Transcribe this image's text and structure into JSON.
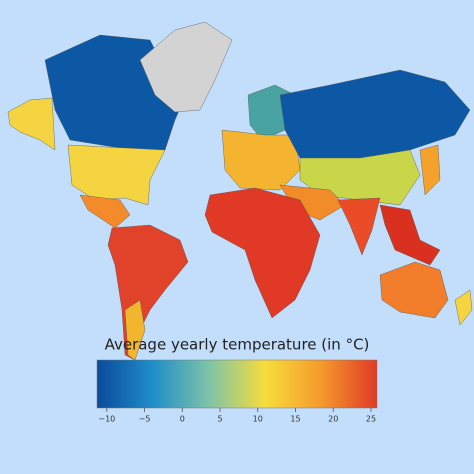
{
  "map": {
    "title": "Average yearly temperature (in °C)",
    "colorbar": {
      "range": [
        -11.3,
        25.8
      ],
      "ticks": [
        {
          "value": -10,
          "label": "−10"
        },
        {
          "value": -5,
          "label": "−5"
        },
        0,
        5,
        10,
        15,
        20,
        25
      ],
      "colors": [
        "#0b4a9a",
        "#1f8ec9",
        "#7ec3a8",
        "#f6dd3c",
        "#f59a2c",
        "#e03a26"
      ]
    }
  }
}
